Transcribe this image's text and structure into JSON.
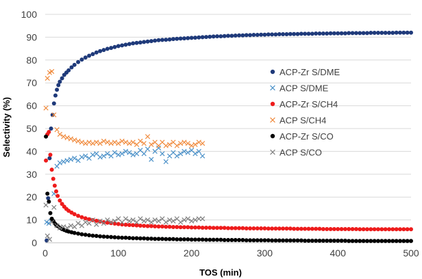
{
  "chart_data": {
    "type": "scatter",
    "xlabel": "TOS (min)",
    "ylabel": "Selectivity (%)",
    "xlim": [
      0,
      500
    ],
    "ylim": [
      0,
      100
    ],
    "x_ticks": [
      0,
      100,
      200,
      300,
      400,
      500
    ],
    "y_ticks": [
      0,
      10,
      20,
      30,
      40,
      50,
      60,
      70,
      80,
      90,
      100
    ],
    "grid": "horizontal",
    "legend_position": "right",
    "series": [
      {
        "name": "ACP-Zr S/DME",
        "marker": "circle",
        "color": "#1f3a7a",
        "x": [
          2,
          4,
          6,
          8,
          10,
          12,
          14,
          16,
          18,
          20,
          23,
          26,
          29,
          32,
          36,
          40,
          45,
          50,
          55,
          60,
          65,
          70,
          75,
          80,
          85,
          90,
          95,
          100,
          105,
          110,
          115,
          120,
          125,
          130,
          135,
          140,
          145,
          150,
          155,
          160,
          165,
          170,
          175,
          180,
          185,
          190,
          195,
          200,
          205,
          210,
          215,
          220,
          225,
          230,
          235,
          240,
          245,
          250,
          255,
          260,
          265,
          270,
          275,
          280,
          285,
          290,
          295,
          300,
          305,
          310,
          315,
          320,
          325,
          330,
          335,
          340,
          345,
          350,
          355,
          360,
          365,
          370,
          375,
          380,
          385,
          390,
          395,
          400,
          405,
          410,
          415,
          420,
          425,
          430,
          435,
          440,
          445,
          450,
          455,
          460,
          465,
          470,
          475,
          480,
          485,
          490,
          495,
          500
        ],
        "y": [
          1.0,
          19.5,
          37.0,
          50.0,
          56.0,
          61.0,
          64.5,
          67.0,
          69.0,
          70.5,
          72.0,
          73.5,
          74.5,
          75.5,
          76.8,
          77.9,
          79.1,
          80.2,
          81.1,
          81.9,
          82.6,
          83.3,
          83.9,
          84.4,
          84.9,
          85.3,
          85.7,
          86.1,
          86.4,
          86.7,
          87.0,
          87.3,
          87.5,
          87.7,
          87.9,
          88.1,
          88.3,
          88.5,
          88.7,
          88.8,
          88.9,
          89.0,
          89.2,
          89.3,
          89.4,
          89.5,
          89.6,
          89.7,
          89.8,
          89.9,
          90.0,
          90.1,
          90.2,
          90.3,
          90.4,
          90.4,
          90.5,
          90.6,
          90.6,
          90.7,
          90.8,
          90.8,
          90.9,
          90.9,
          91.0,
          91.0,
          91.1,
          91.1,
          91.2,
          91.2,
          91.2,
          91.3,
          91.3,
          91.3,
          91.4,
          91.4,
          91.4,
          91.5,
          91.5,
          91.5,
          91.5,
          91.6,
          91.6,
          91.6,
          91.6,
          91.7,
          91.7,
          91.7,
          91.7,
          91.7,
          91.8,
          91.8,
          91.8,
          91.8,
          91.8,
          91.8,
          91.9,
          91.9,
          91.9,
          91.9,
          91.9,
          91.9,
          91.9,
          92.0,
          92.0,
          92.0,
          92.0,
          92.0
        ]
      },
      {
        "name": "ACP S/DME",
        "marker": "x",
        "color": "#4a90c8",
        "x": [
          2,
          5,
          8,
          12,
          16,
          20,
          25,
          30,
          35,
          40,
          45,
          50,
          55,
          60,
          65,
          70,
          75,
          80,
          85,
          90,
          95,
          100,
          105,
          110,
          115,
          120,
          125,
          130,
          135,
          140,
          145,
          150,
          155,
          160,
          165,
          170,
          175,
          180,
          185,
          190,
          195,
          200,
          205,
          210,
          215
        ],
        "y": [
          9.0,
          8.5,
          9.5,
          21.5,
          33.5,
          35.0,
          35.5,
          36.0,
          36.5,
          37.0,
          36.0,
          37.5,
          38.0,
          37.0,
          38.5,
          39.0,
          37.5,
          38.0,
          39.0,
          38.0,
          39.5,
          38.5,
          39.0,
          40.0,
          39.5,
          38.5,
          39.0,
          40.5,
          39.0,
          41.0,
          36.5,
          40.0,
          41.5,
          39.0,
          35.5,
          38.0,
          39.5,
          38.0,
          39.0,
          40.0,
          39.5,
          40.5,
          39.0,
          40.0,
          38.0
        ]
      },
      {
        "name": "ACP-Zr S/CH4",
        "marker": "circle",
        "color": "#ee1c1c",
        "x": [
          1,
          3,
          5,
          7,
          9,
          11,
          13,
          15,
          17,
          20,
          23,
          26,
          29,
          32,
          36,
          40,
          45,
          50,
          55,
          60,
          65,
          70,
          75,
          80,
          85,
          90,
          95,
          100,
          105,
          110,
          115,
          120,
          125,
          130,
          135,
          140,
          145,
          150,
          155,
          160,
          165,
          170,
          175,
          180,
          185,
          190,
          195,
          200,
          205,
          210,
          215,
          220,
          225,
          230,
          235,
          240,
          245,
          250,
          255,
          260,
          265,
          270,
          275,
          280,
          285,
          290,
          295,
          300,
          305,
          310,
          315,
          320,
          325,
          330,
          335,
          340,
          345,
          350,
          355,
          360,
          365,
          370,
          375,
          380,
          385,
          390,
          395,
          400,
          405,
          410,
          415,
          420,
          425,
          430,
          435,
          440,
          445,
          450,
          455,
          460,
          465,
          470,
          475,
          480,
          485,
          490,
          495,
          500
        ],
        "y": [
          36.0,
          47.5,
          48.5,
          38.5,
          32.0,
          28.0,
          25.0,
          22.5,
          20.5,
          18.5,
          17.0,
          15.8,
          14.8,
          14.0,
          13.2,
          12.5,
          11.8,
          11.2,
          10.7,
          10.3,
          9.9,
          9.6,
          9.3,
          9.0,
          8.8,
          8.6,
          8.4,
          8.2,
          8.0,
          7.9,
          7.8,
          7.7,
          7.6,
          7.5,
          7.4,
          7.3,
          7.3,
          7.2,
          7.1,
          7.1,
          7.0,
          7.0,
          6.9,
          6.9,
          6.8,
          6.8,
          6.8,
          6.7,
          6.7,
          6.7,
          6.6,
          6.6,
          6.6,
          6.5,
          6.5,
          6.5,
          6.5,
          6.4,
          6.4,
          6.4,
          6.4,
          6.4,
          6.3,
          6.3,
          6.3,
          6.3,
          6.3,
          6.3,
          6.2,
          6.2,
          6.2,
          6.2,
          6.2,
          6.2,
          6.2,
          6.1,
          6.1,
          6.1,
          6.1,
          6.1,
          6.1,
          6.1,
          6.1,
          6.0,
          6.0,
          6.0,
          6.0,
          6.0,
          6.0,
          6.0,
          6.0,
          6.0,
          6.0,
          5.9,
          5.9,
          5.9,
          5.9,
          5.9,
          5.9,
          5.9,
          5.9,
          5.9,
          5.9,
          5.9,
          5.9,
          5.9,
          5.9,
          5.9
        ]
      },
      {
        "name": "ACP S/CH4",
        "marker": "x",
        "color": "#f08a3c",
        "x": [
          1,
          3,
          6,
          9,
          12,
          16,
          20,
          25,
          30,
          35,
          40,
          45,
          50,
          55,
          60,
          65,
          70,
          75,
          80,
          85,
          90,
          95,
          100,
          105,
          110,
          115,
          120,
          125,
          130,
          135,
          140,
          145,
          150,
          155,
          160,
          165,
          170,
          175,
          180,
          185,
          190,
          195,
          200,
          205,
          210,
          215
        ],
        "y": [
          59.0,
          72.0,
          74.5,
          75.0,
          56.0,
          49.5,
          47.5,
          46.5,
          46.0,
          45.5,
          45.0,
          44.5,
          44.0,
          43.5,
          44.0,
          43.5,
          44.0,
          43.5,
          44.5,
          44.0,
          43.5,
          44.0,
          43.5,
          44.5,
          44.0,
          43.5,
          44.0,
          43.0,
          44.5,
          43.5,
          46.5,
          43.0,
          44.0,
          42.5,
          44.0,
          42.5,
          43.0,
          44.0,
          42.5,
          43.5,
          44.0,
          43.5,
          42.5,
          43.0,
          44.0,
          43.5
        ]
      },
      {
        "name": "ACP-Zr S/CO",
        "marker": "circle",
        "color": "#000000",
        "x": [
          1,
          3,
          5,
          7,
          9,
          11,
          13,
          15,
          17,
          20,
          23,
          26,
          29,
          32,
          36,
          40,
          45,
          50,
          55,
          60,
          65,
          70,
          75,
          80,
          85,
          90,
          95,
          100,
          105,
          110,
          115,
          120,
          125,
          130,
          135,
          140,
          145,
          150,
          155,
          160,
          165,
          170,
          175,
          180,
          185,
          190,
          195,
          200,
          205,
          210,
          215,
          220,
          225,
          230,
          235,
          240,
          245,
          250,
          255,
          260,
          265,
          270,
          275,
          280,
          285,
          290,
          295,
          300,
          305,
          310,
          315,
          320,
          325,
          330,
          335,
          340,
          345,
          350,
          355,
          360,
          365,
          370,
          375,
          380,
          385,
          390,
          395,
          400,
          405,
          410,
          415,
          420,
          425,
          430,
          435,
          440,
          445,
          450,
          455,
          460,
          465,
          470,
          475,
          480,
          485,
          490,
          495,
          500
        ],
        "y": [
          46.5,
          21.5,
          18.0,
          13.0,
          10.5,
          9.5,
          8.5,
          7.8,
          7.3,
          6.6,
          6.0,
          5.6,
          5.2,
          4.9,
          4.6,
          4.3,
          4.0,
          3.7,
          3.5,
          3.3,
          3.1,
          3.0,
          2.8,
          2.7,
          2.6,
          2.5,
          2.4,
          2.3,
          2.2,
          2.2,
          2.1,
          2.0,
          2.0,
          1.9,
          1.9,
          1.8,
          1.8,
          1.7,
          1.7,
          1.7,
          1.6,
          1.6,
          1.6,
          1.5,
          1.5,
          1.5,
          1.5,
          1.4,
          1.4,
          1.4,
          1.4,
          1.3,
          1.3,
          1.3,
          1.3,
          1.3,
          1.2,
          1.2,
          1.2,
          1.2,
          1.2,
          1.2,
          1.1,
          1.1,
          1.1,
          1.1,
          1.1,
          1.1,
          1.1,
          1.0,
          1.0,
          1.0,
          1.0,
          1.0,
          1.0,
          1.0,
          1.0,
          1.0,
          0.9,
          0.9,
          0.9,
          0.9,
          0.9,
          0.9,
          0.9,
          0.9,
          0.9,
          0.9,
          0.9,
          0.9,
          0.8,
          0.8,
          0.8,
          0.8,
          0.8,
          0.8,
          0.8,
          0.8,
          0.8,
          0.8,
          0.8,
          0.8,
          0.8,
          0.8,
          0.8,
          0.8,
          0.8,
          0.8
        ]
      },
      {
        "name": "ACP S/CO",
        "marker": "x",
        "color": "#7f7f7f",
        "x": [
          1,
          3,
          6,
          9,
          12,
          16,
          20,
          25,
          30,
          35,
          40,
          45,
          50,
          55,
          60,
          65,
          70,
          75,
          80,
          85,
          90,
          95,
          100,
          105,
          110,
          115,
          120,
          125,
          130,
          135,
          140,
          145,
          150,
          155,
          160,
          165,
          170,
          175,
          180,
          185,
          190,
          195,
          200,
          205,
          210,
          215
        ],
        "y": [
          16.5,
          3.0,
          1.5,
          9.0,
          15.5,
          7.5,
          6.5,
          7.0,
          6.5,
          7.5,
          7.0,
          8.5,
          7.5,
          9.0,
          8.5,
          10.0,
          8.0,
          9.5,
          8.5,
          10.0,
          9.0,
          9.5,
          10.5,
          9.0,
          10.5,
          9.5,
          10.0,
          9.0,
          10.5,
          9.5,
          10.0,
          9.0,
          10.0,
          9.5,
          10.5,
          9.0,
          10.0,
          9.5,
          10.5,
          9.0,
          10.0,
          10.5,
          9.5,
          10.0,
          10.5,
          10.5
        ]
      }
    ]
  }
}
